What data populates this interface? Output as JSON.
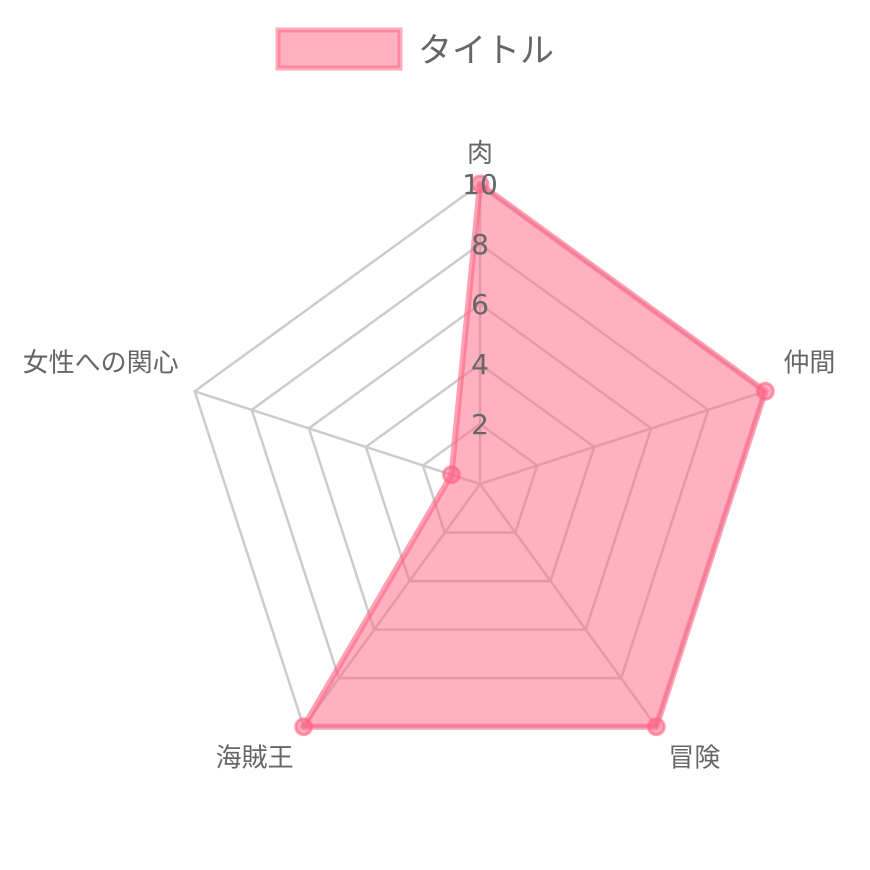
{
  "chart_data": {
    "type": "radar",
    "title": "",
    "axes": [
      "肉",
      "仲間",
      "冒険",
      "海賊王",
      "女性への関心"
    ],
    "series": [
      {
        "name": "タイトル",
        "values": [
          10,
          10,
          10,
          10,
          1
        ]
      }
    ],
    "r_range": [
      0,
      10
    ],
    "ticks": [
      "2",
      "4",
      "6",
      "8",
      "10"
    ],
    "tick_values": [
      2,
      4,
      6,
      8,
      10
    ],
    "legend_position": "top",
    "grid": true,
    "colors": {
      "fill": "#ff6384",
      "stroke": "#ff6384",
      "grid": "#cccccc",
      "text": "#666666"
    }
  }
}
